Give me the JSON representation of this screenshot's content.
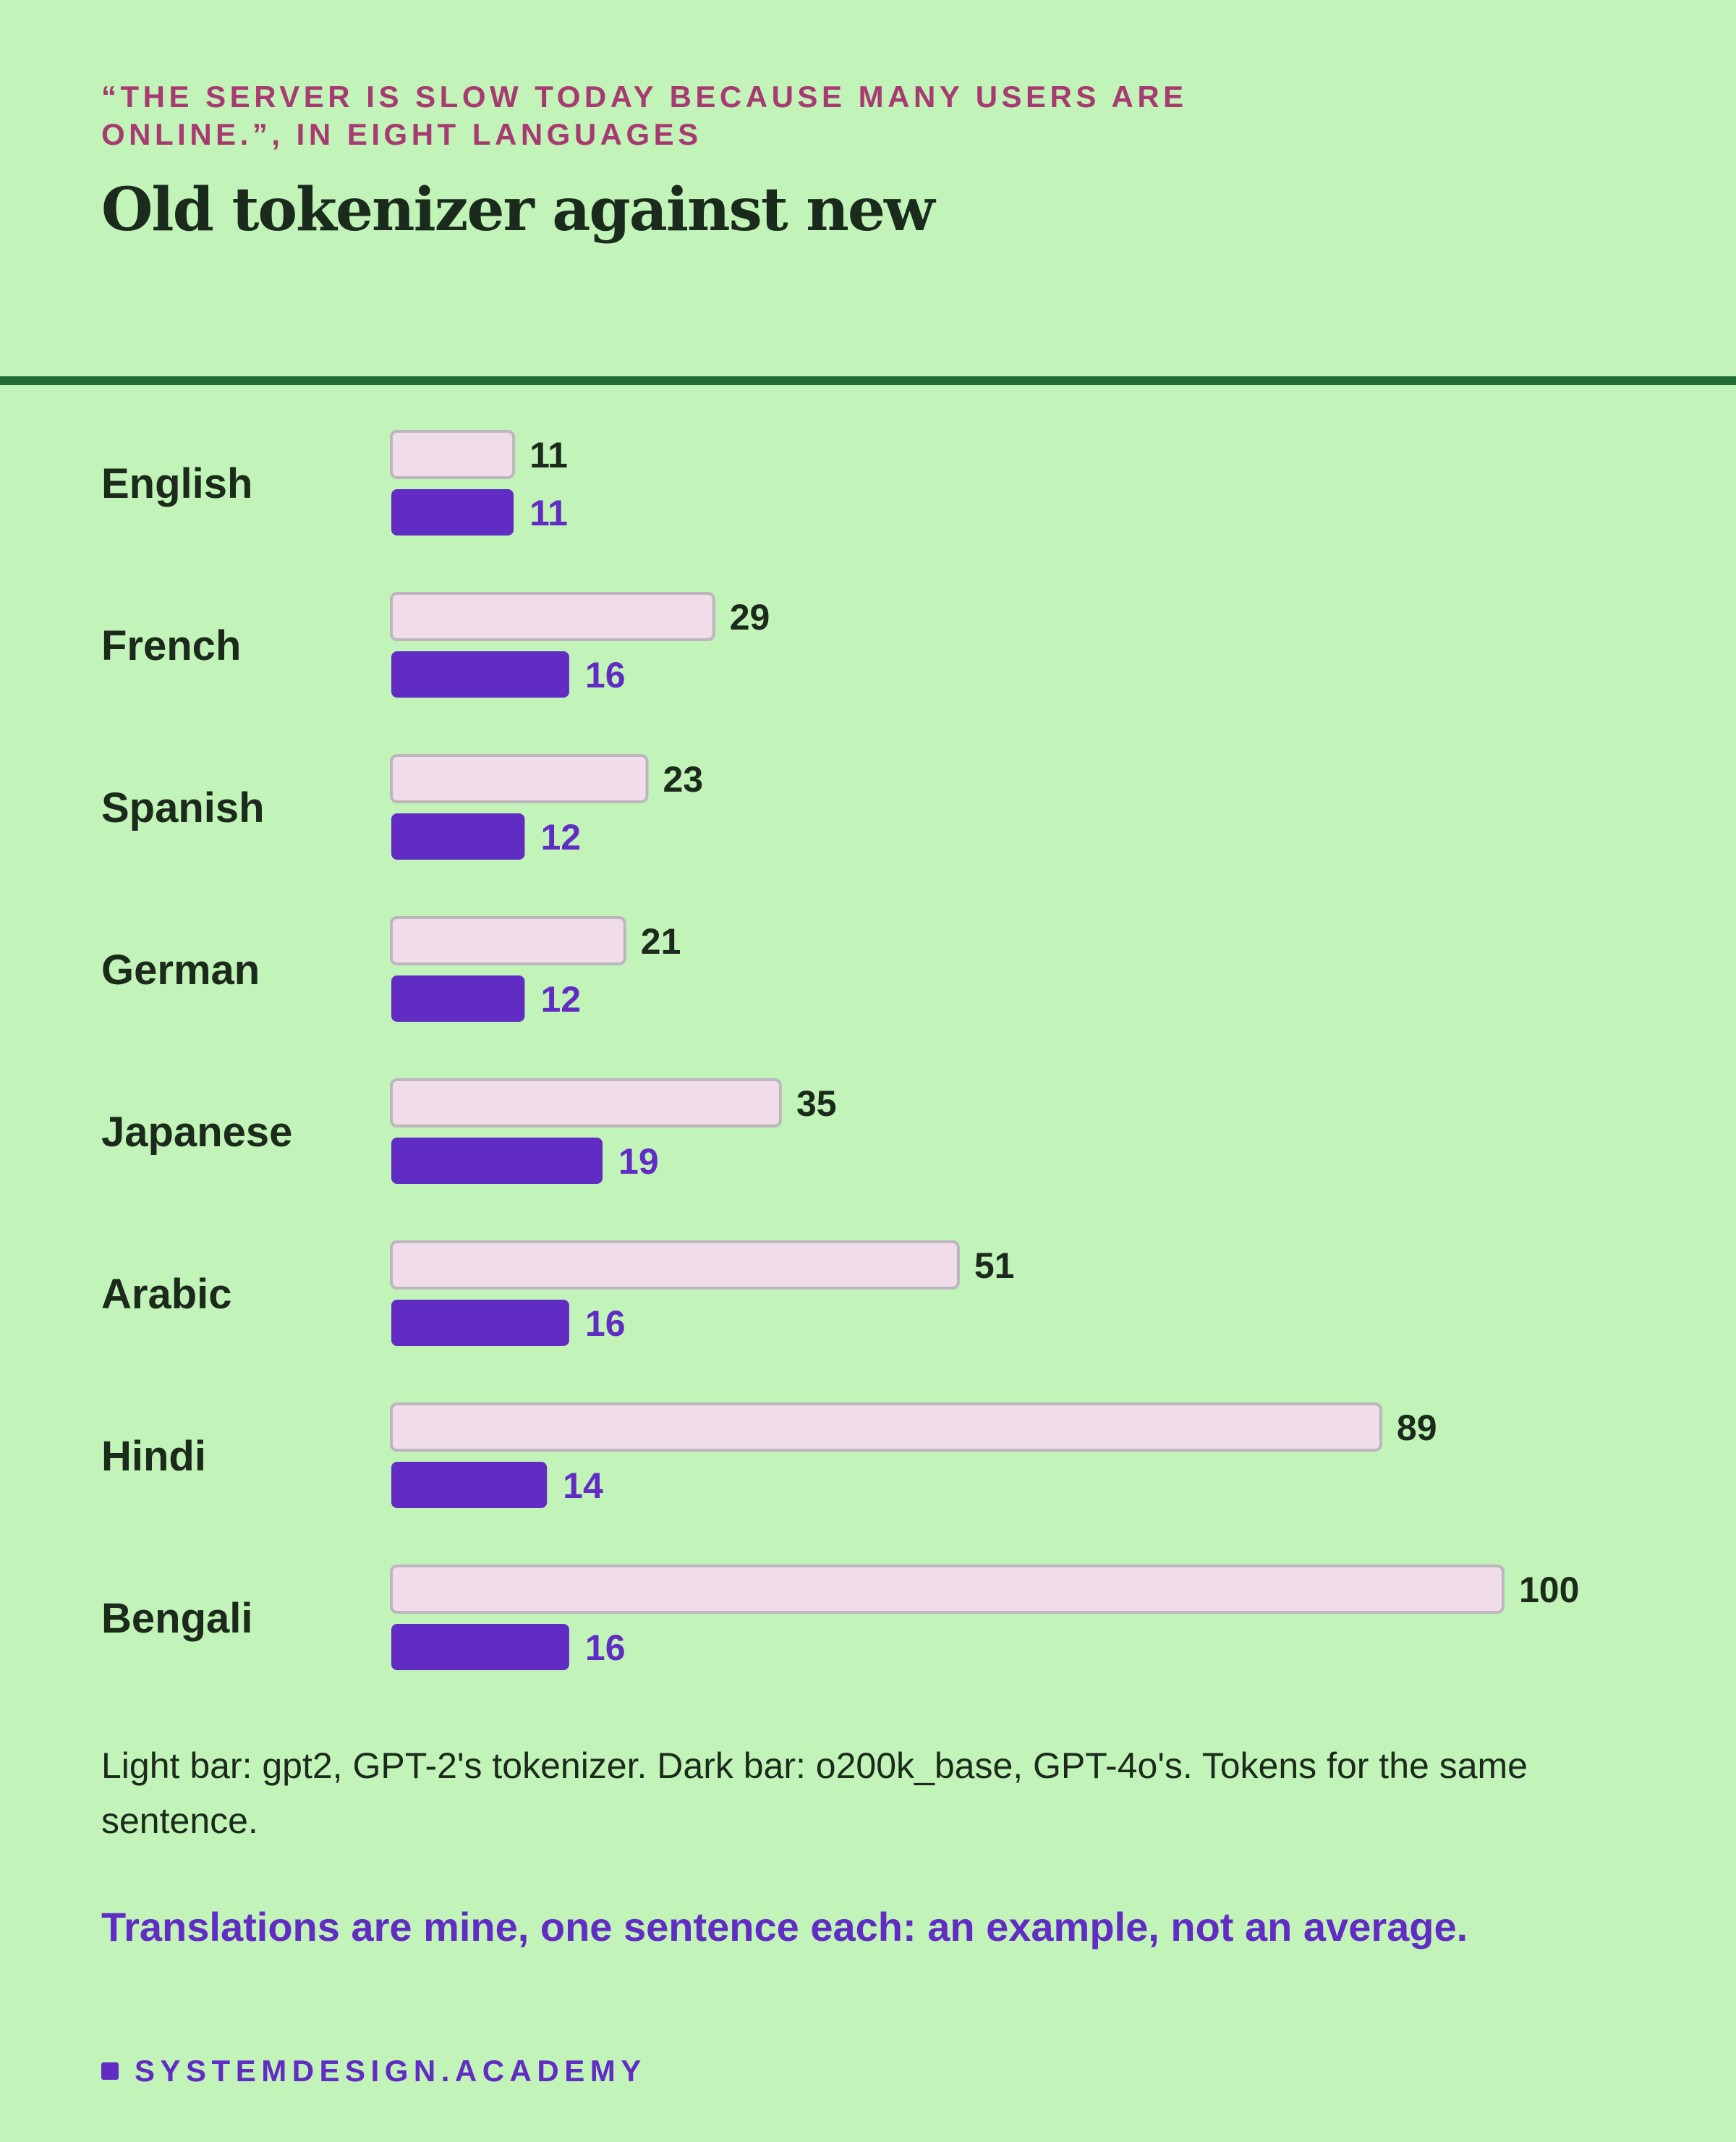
{
  "header": {
    "kicker": "“THE SERVER IS SLOW TODAY BECAUSE MANY USERS ARE ONLINE.”, IN EIGHT LANGUAGES",
    "title": "Old tokenizer against new"
  },
  "chart_data": {
    "type": "bar",
    "orientation": "horizontal",
    "categories": [
      "English",
      "French",
      "Spanish",
      "German",
      "Japanese",
      "Arabic",
      "Hindi",
      "Bengali"
    ],
    "series": [
      {
        "values": [
          11,
          29,
          23,
          21,
          35,
          51,
          89,
          100
        ],
        "color": "#f0dde9"
      },
      {
        "values": [
          11,
          16,
          12,
          12,
          19,
          16,
          14,
          16
        ],
        "color": "#612cc4"
      }
    ],
    "xlim": [
      0,
      100
    ],
    "grid": false
  },
  "notes": {
    "legend_text": "Light bar: gpt2, GPT-2's tokenizer. Dark bar: o200k_base, GPT-4o's. Tokens for the same sentence.",
    "disclaimer": "Translations are mine, one sentence each: an example, not an average."
  },
  "footer": {
    "brand": "SYSTEMDESIGN.ACADEMY"
  },
  "colors": {
    "background": "#c2f3b8",
    "kicker": "#a83a72",
    "rule": "#1f6b35",
    "accent": "#612cc4"
  }
}
